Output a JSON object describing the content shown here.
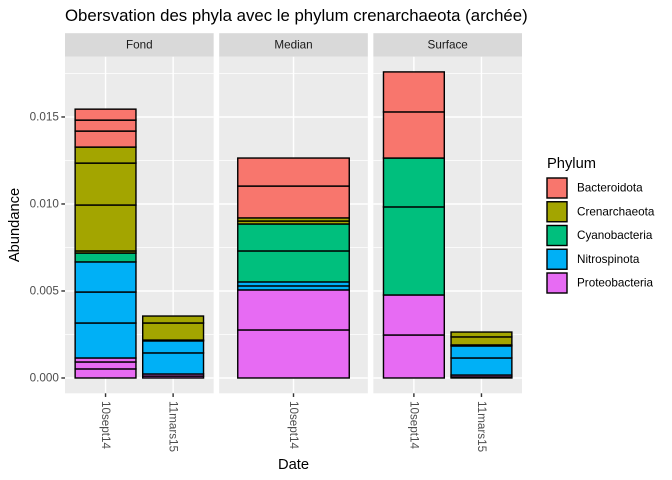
{
  "chart_data": {
    "type": "bar",
    "stacked": true,
    "title": "Obersvation des phyla avec le phylum crenarchaeota (archée)",
    "xlabel": "Date",
    "ylabel": "Abundance",
    "ylim": [
      -0.00088,
      0.01847
    ],
    "yticks": [
      0,
      0.005,
      0.01,
      0.015
    ],
    "ytick_labels": [
      "0.000",
      "0.005",
      "0.010",
      "0.015"
    ],
    "grid": true,
    "panel_background": "#EBEBEB",
    "strip_background": "#D9D9D9",
    "bar_outline": "#000000",
    "legend": {
      "title": "Phylum",
      "placement": "right",
      "items": [
        {
          "name": "Bacteroidota",
          "color": "#F8766D"
        },
        {
          "name": "Crenarchaeota",
          "color": "#A3A500"
        },
        {
          "name": "Cyanobacteria",
          "color": "#00BF7D"
        },
        {
          "name": "Nitrospinota",
          "color": "#00B0F6"
        },
        {
          "name": "Proteobacteria",
          "color": "#E76BF3"
        }
      ]
    },
    "facets": [
      {
        "label": "Fond",
        "bars": [
          {
            "x": "10sept14",
            "segments": {
              "Proteobacteria": [
                0.00052,
                0.0004,
                0.00023
              ],
              "Nitrospinota": [
                0.00201,
                0.00178,
                0.00173
              ],
              "Cyanobacteria": [
                0.00051
              ],
              "Crenarchaeota": [
                0.00012,
                0.00264,
                0.00241,
                0.00092
              ],
              "Bacteroidota": [
                0.00092,
                0.00063,
                0.00063
              ]
            }
          },
          {
            "x": "11mars15",
            "segments": {
              "Proteobacteria": [
                0.00011,
                0.00012
              ],
              "Nitrospinota": [
                0.00121,
                0.00069
              ],
              "Cyanobacteria": [
                5e-05
              ],
              "Crenarchaeota": [
                0.00098,
                0.0004
              ]
            }
          }
        ]
      },
      {
        "label": "Median",
        "bars": [
          {
            "x": "10sept14",
            "segments": {
              "Proteobacteria": [
                0.00276,
                0.0023
              ],
              "Nitrospinota": [
                0.00023,
                0.00023
              ],
              "Cyanobacteria": [
                0.00178,
                0.00155
              ],
              "Crenarchaeota": [
                0.00017,
                0.00018
              ],
              "Bacteroidota": [
                0.00183,
                0.00161
              ]
            }
          }
        ]
      },
      {
        "label": "Surface",
        "bars": [
          {
            "x": "10sept14",
            "segments": {
              "Proteobacteria": [
                0.00247,
                0.0023
              ],
              "Cyanobacteria": [
                0.00506,
                0.00281
              ],
              "Bacteroidota": [
                0.00265,
                0.0023
              ]
            }
          },
          {
            "x": "11mars15",
            "segments": {
              "Proteobacteria": [
                6e-05,
                0.00011
              ],
              "Nitrospinota": [
                0.00098,
                0.00069
              ],
              "Cyanobacteria": [
                6e-05
              ],
              "Crenarchaeota": [
                0.00046,
                0.00028
              ]
            }
          }
        ]
      }
    ]
  }
}
